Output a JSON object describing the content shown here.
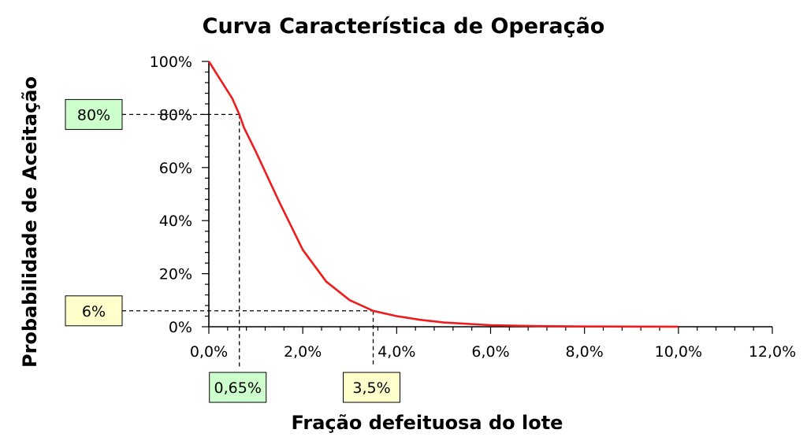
{
  "chart_data": {
    "type": "line",
    "title": "Curva Característica de Operação",
    "xlabel": "Fração defeituosa do lote",
    "ylabel": "Probabilidade de Aceitação",
    "xlim": [
      0,
      12
    ],
    "ylim": [
      0,
      100
    ],
    "x_ticks": [
      "0,0%",
      "2,0%",
      "4,0%",
      "6,0%",
      "8,0%",
      "10,0%",
      "12,0%"
    ],
    "y_ticks": [
      "0%",
      "20%",
      "40%",
      "60%",
      "80%",
      "100%"
    ],
    "grid": false,
    "legend": "none",
    "series": [
      {
        "color": "#ee1c1c",
        "x": [
          0,
          0.25,
          0.5,
          0.65,
          0.75,
          1.0,
          1.5,
          2.0,
          2.5,
          3.0,
          3.25,
          3.5,
          4.0,
          4.5,
          5.0,
          6.0,
          7.0,
          8.0,
          9.0,
          10.0
        ],
        "y": [
          100,
          93,
          86,
          80,
          75,
          66,
          47,
          29,
          17,
          10,
          8,
          6,
          4,
          2.6,
          1.6,
          0.6,
          0.25,
          0.1,
          0.05,
          0.02
        ]
      }
    ],
    "annotations": [
      {
        "label": "80%",
        "x": 0.65,
        "y": 80,
        "axis": "y",
        "fill": "#ccffcc"
      },
      {
        "label": "6%",
        "x": 3.5,
        "y": 6,
        "axis": "y",
        "fill": "#ffffcc"
      },
      {
        "label": "0,65%",
        "x": 0.65,
        "y": 80,
        "axis": "x",
        "fill": "#ccffcc"
      },
      {
        "label": "3,5%",
        "x": 3.5,
        "y": 6,
        "axis": "x",
        "fill": "#ffffcc"
      }
    ]
  }
}
